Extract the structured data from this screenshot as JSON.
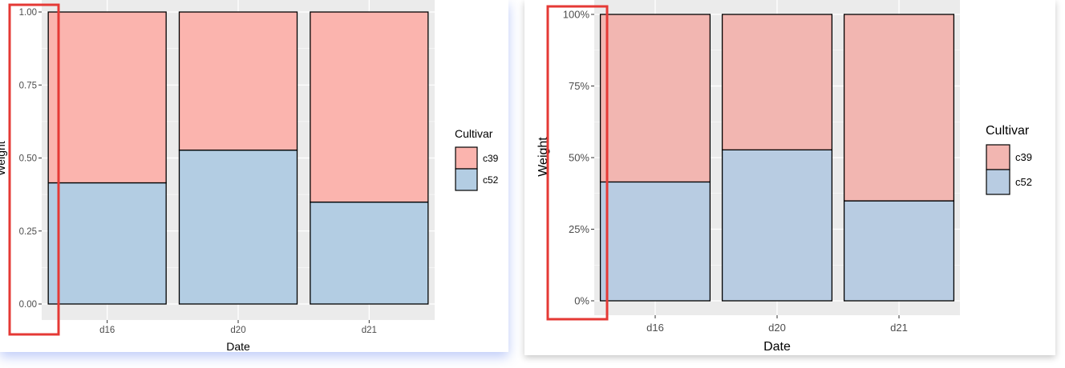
{
  "colors": {
    "panel_bg": "#EBEBEB",
    "grid": "#FFFFFF",
    "bar_outline": "#000000",
    "highlight_box": "#E53935",
    "left_c39": "#FBB4AE",
    "left_c52": "#B3CDE3",
    "right_c39": "#F2B6B1",
    "right_c52": "#B8CCE2"
  },
  "chart_data": [
    {
      "type": "bar",
      "stacked": true,
      "categories": [
        "d16",
        "d20",
        "d21"
      ],
      "series": [
        {
          "name": "c52",
          "values": [
            0.415,
            0.527,
            0.349
          ]
        },
        {
          "name": "c39",
          "values": [
            0.585,
            0.473,
            0.651
          ]
        }
      ],
      "xlabel": "Date",
      "ylabel": "Weight",
      "ylim": [
        0,
        1
      ],
      "y_ticks": [
        0,
        0.25,
        0.5,
        0.75,
        1
      ],
      "y_tick_labels": [
        "0.00",
        "0.25",
        "0.50",
        "0.75",
        "1.00"
      ],
      "legend_title": "Cultivar",
      "legend_entries": [
        "c39",
        "c52"
      ],
      "legend_position": "right",
      "grid": true,
      "highlight": "y-axis tick labels"
    },
    {
      "type": "bar",
      "stacked": true,
      "categories": [
        "d16",
        "d20",
        "d21"
      ],
      "series": [
        {
          "name": "c52",
          "values": [
            0.415,
            0.527,
            0.349
          ]
        },
        {
          "name": "c39",
          "values": [
            0.585,
            0.473,
            0.651
          ]
        }
      ],
      "xlabel": "Date",
      "ylabel": "Weight",
      "ylim": [
        0,
        1
      ],
      "y_ticks": [
        0,
        0.25,
        0.5,
        0.75,
        1
      ],
      "y_tick_labels": [
        "0%",
        "25%",
        "50%",
        "75%",
        "100%"
      ],
      "legend_title": "Cultivar",
      "legend_entries": [
        "c39",
        "c52"
      ],
      "legend_position": "right",
      "grid": true,
      "highlight": "y-axis tick labels"
    }
  ]
}
